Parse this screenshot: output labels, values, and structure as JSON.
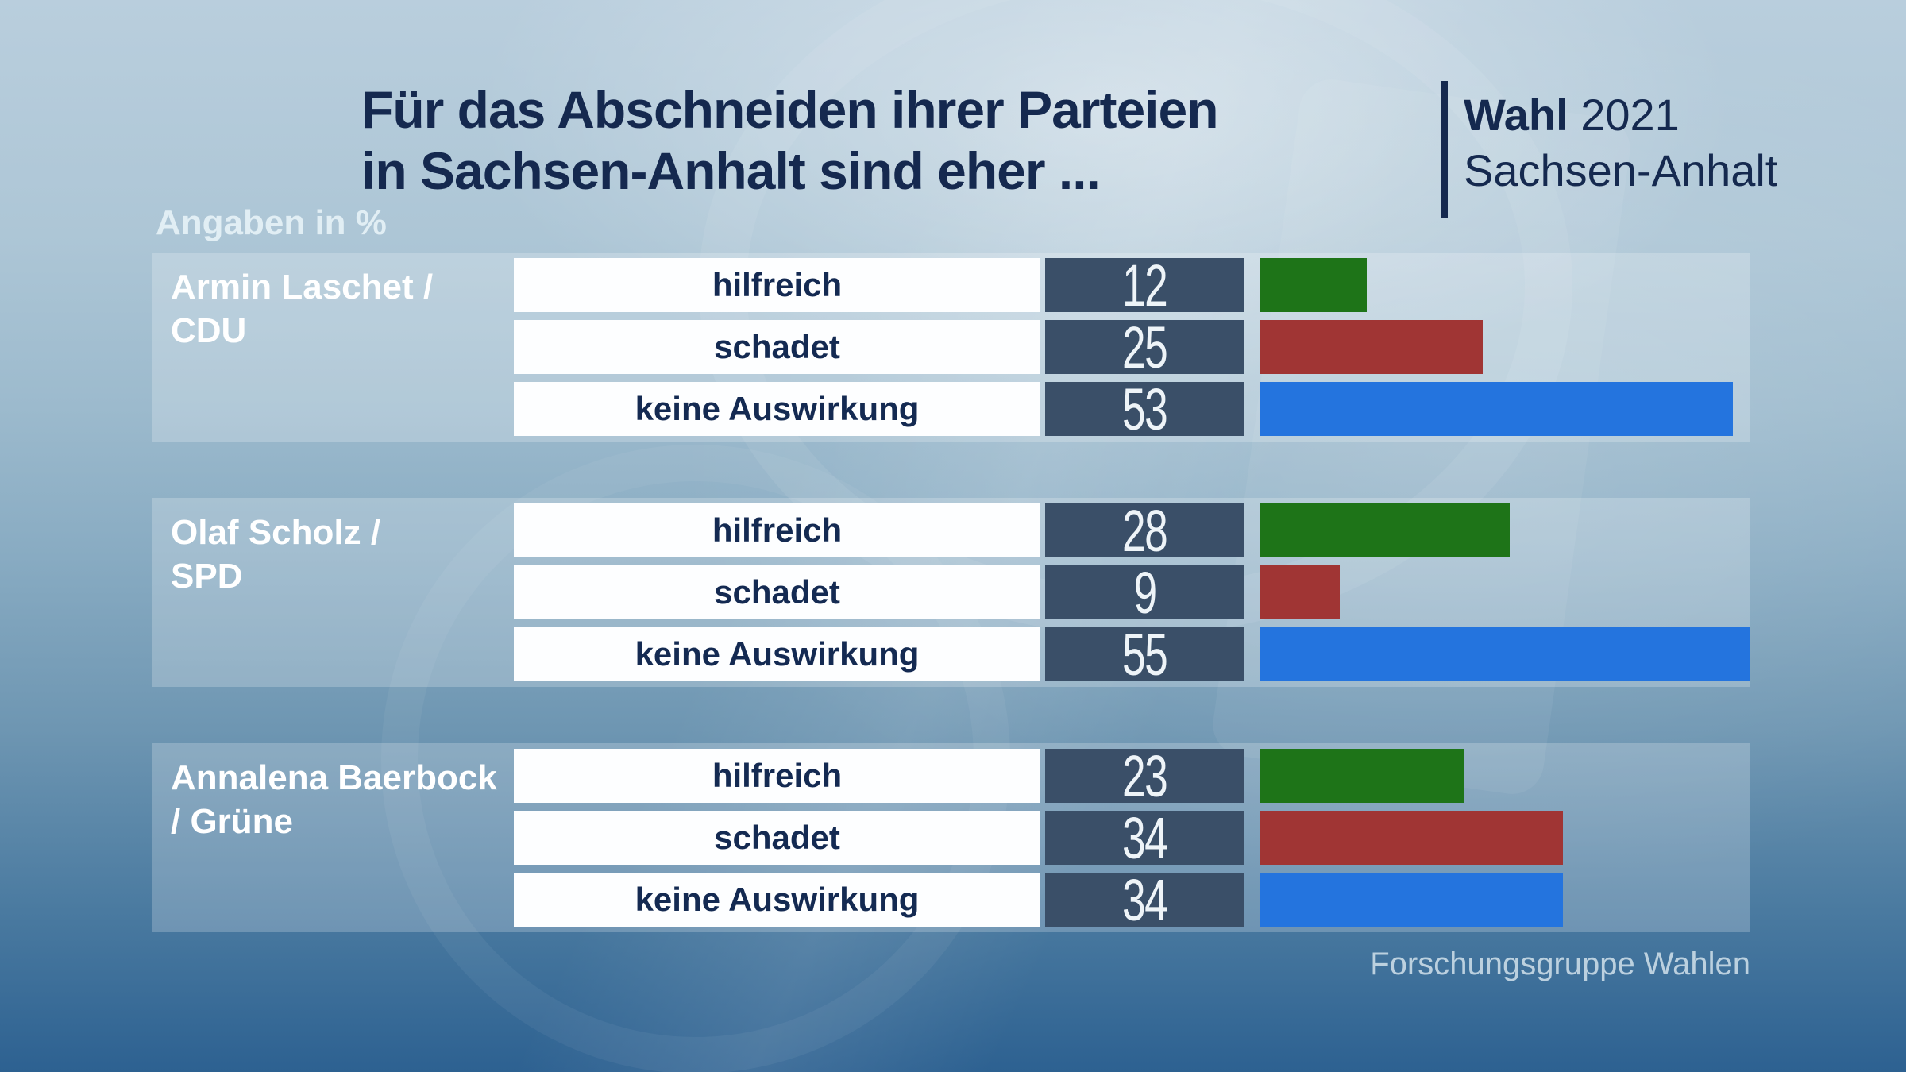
{
  "title": {
    "line1": "Für das Abschneiden ihrer Parteien",
    "line2": "in Sachsen-Anhalt sind eher ..."
  },
  "brand": {
    "title_bold": "Wahl",
    "title_year": "2021",
    "region": "Sachsen-Anhalt"
  },
  "units_label": "Angaben in %",
  "source": "Forschungsgruppe Wahlen",
  "colors": {
    "navy_text": "#15294f",
    "category_box_bg": "#fdfeff",
    "value_box_bg": "#3a4f68",
    "panel_overlay": "rgba(255,255,255,0.22)",
    "bar_green": "#1e7418",
    "bar_red": "#a03534",
    "bar_blue": "#2474de"
  },
  "chart_data": {
    "type": "bar",
    "title": "Für das Abschneiden ihrer Parteien in Sachsen-Anhalt sind eher ...",
    "subtitle": "Wahl 2021 Sachsen-Anhalt",
    "unit": "percent",
    "xlim": [
      0,
      55
    ],
    "grid": false,
    "legend_position": "none",
    "source": "Forschungsgruppe Wahlen",
    "categories": [
      "hilfreich",
      "schadet",
      "keine Auswirkung"
    ],
    "bar_colors": [
      "#1e7418",
      "#a03534",
      "#2474de"
    ],
    "series": [
      {
        "name": "Armin Laschet / CDU",
        "label_line1": "Armin Laschet /",
        "label_line2": "CDU",
        "values": [
          12,
          25,
          53
        ]
      },
      {
        "name": "Olaf Scholz / SPD",
        "label_line1": "Olaf Scholz /",
        "label_line2": "SPD",
        "values": [
          28,
          9,
          55
        ]
      },
      {
        "name": "Annalena Baerbock / Grüne",
        "label_line1": "Annalena Baerbock",
        "label_line2": "/ Grüne",
        "values": [
          23,
          34,
          34
        ]
      }
    ]
  }
}
